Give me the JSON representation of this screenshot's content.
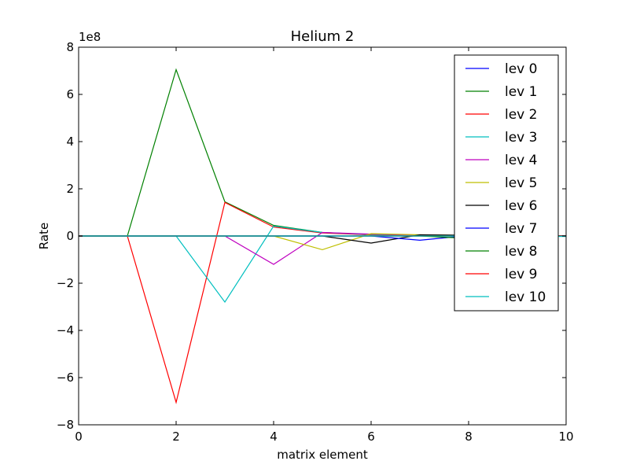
{
  "chart_data": {
    "type": "line",
    "title": "Helium 2",
    "xlabel": "matrix element",
    "ylabel": "Rate",
    "y_offset_label": "1e8",
    "xlim": [
      0,
      10
    ],
    "ylim": [
      -8,
      8
    ],
    "x_ticks": [
      0,
      2,
      4,
      6,
      8,
      10
    ],
    "x_tick_labels": [
      "0",
      "2",
      "4",
      "6",
      "8",
      "10"
    ],
    "y_ticks": [
      -8,
      -6,
      -4,
      -2,
      0,
      2,
      4,
      6,
      8
    ],
    "y_tick_labels": [
      "−8",
      "−6",
      "−4",
      "−2",
      "0",
      "2",
      "4",
      "6",
      "8"
    ],
    "grid": false,
    "legend_position": "top-right",
    "x": [
      0,
      1,
      2,
      3,
      4,
      5,
      6,
      7,
      8,
      9,
      10
    ],
    "series": [
      {
        "name": "lev 0",
        "color": "#0000ff",
        "values": [
          0,
          0,
          0,
          0,
          0,
          0,
          0,
          0,
          0,
          0,
          0
        ]
      },
      {
        "name": "lev 1",
        "color": "#008000",
        "values": [
          0,
          0,
          7.05,
          1.45,
          0.45,
          0.15,
          0.05,
          0.02,
          0.01,
          0,
          0
        ]
      },
      {
        "name": "lev 2",
        "color": "#ff0000",
        "values": [
          0,
          0,
          -7.05,
          1.42,
          0.38,
          0.13,
          0.05,
          0.02,
          0.01,
          0,
          0
        ]
      },
      {
        "name": "lev 3",
        "color": "#00bfbf",
        "values": [
          0,
          0,
          0,
          -2.8,
          0.42,
          0.15,
          0.06,
          0.02,
          0.01,
          0,
          0
        ]
      },
      {
        "name": "lev 4",
        "color": "#bf00bf",
        "values": [
          0,
          0,
          0,
          0,
          -1.2,
          0.15,
          0.08,
          0.03,
          0.01,
          0,
          0
        ]
      },
      {
        "name": "lev 5",
        "color": "#bfbf00",
        "values": [
          0,
          0,
          0,
          0,
          0,
          -0.58,
          0.1,
          0.05,
          0.02,
          0,
          0
        ]
      },
      {
        "name": "lev 6",
        "color": "#000000",
        "values": [
          0,
          0,
          0,
          0,
          0,
          0,
          -0.3,
          0.05,
          0.03,
          0.01,
          0
        ]
      },
      {
        "name": "lev 7",
        "color": "#0000ff",
        "values": [
          0,
          0,
          0,
          0,
          0,
          0,
          0,
          -0.18,
          0.02,
          0.01,
          0
        ]
      },
      {
        "name": "lev 8",
        "color": "#008000",
        "values": [
          0,
          0,
          0,
          0,
          0,
          0,
          0,
          0,
          -0.1,
          0.01,
          0
        ]
      },
      {
        "name": "lev 9",
        "color": "#ff0000",
        "values": [
          0,
          0,
          0,
          0,
          0,
          0,
          0,
          0,
          0,
          -0.05,
          0
        ]
      },
      {
        "name": "lev 10",
        "color": "#00bfbf",
        "values": [
          0,
          0,
          0,
          0,
          0,
          0,
          0,
          0,
          0,
          0,
          -0.02
        ]
      }
    ]
  }
}
